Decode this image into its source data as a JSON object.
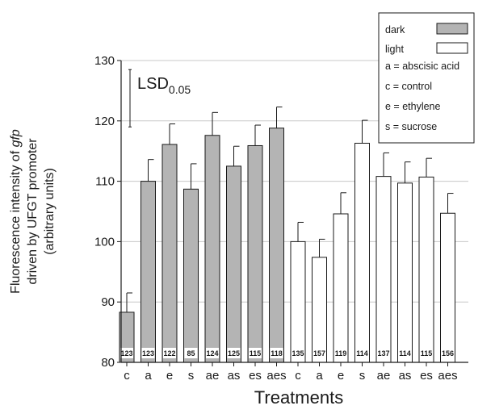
{
  "chart_data": {
    "type": "bar",
    "xlabel": "Treatments",
    "ylabel_lines": [
      {
        "before": "Fluorescence intensity of ",
        "italic": "gfp",
        "after": ""
      },
      {
        "before": "driven by UFGT promoter",
        "italic": "",
        "after": ""
      },
      {
        "before": "(arbitrary units)",
        "italic": "",
        "after": ""
      }
    ],
    "ylim": [
      80,
      130
    ],
    "yticks": [
      80,
      90,
      100,
      110,
      120,
      130
    ],
    "grid": true,
    "legend_position": "top-right",
    "lsd": {
      "label": "LSD",
      "subscript": "0.05",
      "low": 119,
      "high": 128.5
    },
    "colors": {
      "dark": "#b4b4b4",
      "light": "#ffffff",
      "edge": "#1a1a1a",
      "grid": "#c8c8c8"
    },
    "series": [
      {
        "name": "dark",
        "categories": [
          "c",
          "a",
          "e",
          "s",
          "ae",
          "as",
          "es",
          "aes"
        ],
        "values": [
          88.3,
          110.0,
          116.1,
          108.7,
          117.6,
          112.5,
          115.9,
          118.8
        ],
        "errors": [
          3.2,
          3.6,
          3.4,
          4.2,
          3.8,
          3.3,
          3.4,
          3.5
        ],
        "n": [
          "123",
          "123",
          "122",
          "85",
          "124",
          "125",
          "115",
          "118"
        ]
      },
      {
        "name": "light",
        "categories": [
          "c",
          "a",
          "e",
          "s",
          "ae",
          "as",
          "es",
          "aes"
        ],
        "values": [
          100.0,
          97.4,
          104.6,
          116.3,
          110.8,
          109.7,
          110.7,
          104.7
        ],
        "errors": [
          3.2,
          3.0,
          3.5,
          3.8,
          3.9,
          3.5,
          3.1,
          3.3
        ],
        "n": [
          "135",
          "157",
          "119",
          "114",
          "137",
          "114",
          "115",
          "156"
        ]
      }
    ],
    "legend": {
      "entries": [
        {
          "label": "dark",
          "swatch": "dark"
        },
        {
          "label": "light",
          "swatch": "light"
        }
      ],
      "notes": [
        "a = abscisic acid",
        "c = control",
        "e = ethylene",
        "s = sucrose"
      ]
    }
  }
}
